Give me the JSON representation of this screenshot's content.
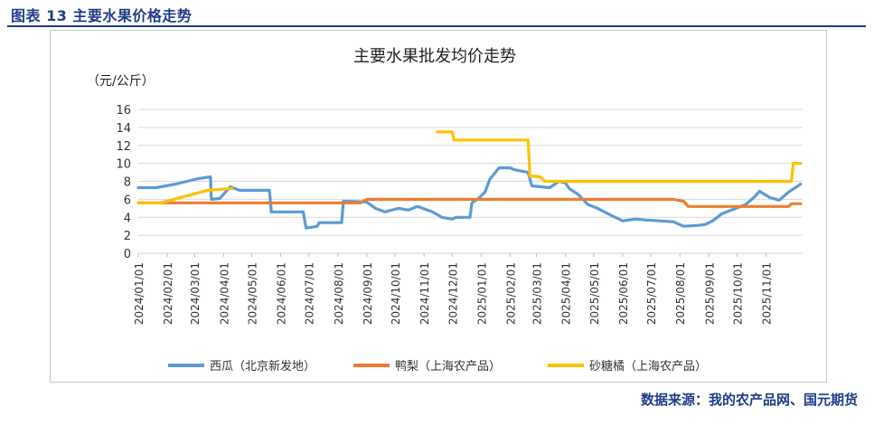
{
  "figure": {
    "title": "图表 13  主要水果价格走势",
    "source": "数据来源：我的农产品网、国元期货"
  },
  "chart_data": {
    "type": "line",
    "title": "主要水果批发均价走势",
    "ylabel": "（元/公斤）",
    "ylim": [
      0,
      16
    ],
    "yticks": [
      0,
      2,
      4,
      6,
      8,
      10,
      12,
      14,
      16
    ],
    "xlim": [
      "2024-01-01",
      "2025-12-10"
    ],
    "xticks": [
      "2024/01/01",
      "2024/02/01",
      "2024/03/01",
      "2024/04/01",
      "2024/05/01",
      "2024/06/01",
      "2024/07/01",
      "2024/08/01",
      "2024/09/01",
      "2024/10/01",
      "2024/11/01",
      "2024/12/01",
      "2025/01/01",
      "2025/02/01",
      "2025/03/01",
      "2025/04/01",
      "2025/05/01",
      "2025/06/01",
      "2025/07/01",
      "2025/08/01",
      "2025/09/01",
      "2025/10/01",
      "2025/11/01"
    ],
    "grid": "horizontal",
    "legend": "bottom",
    "series": [
      {
        "name": "西瓜（北京新发地）",
        "color": "#5b9bd5",
        "points": [
          [
            "2024-01-01",
            7.3
          ],
          [
            "2024-01-20",
            7.3
          ],
          [
            "2024-02-10",
            7.7
          ],
          [
            "2024-03-05",
            8.3
          ],
          [
            "2024-03-18",
            8.5
          ],
          [
            "2024-03-19",
            6.0
          ],
          [
            "2024-03-28",
            6.1
          ],
          [
            "2024-04-08",
            7.4
          ],
          [
            "2024-04-18",
            7.0
          ],
          [
            "2024-05-20",
            7.0
          ],
          [
            "2024-05-22",
            4.6
          ],
          [
            "2024-06-25",
            4.6
          ],
          [
            "2024-06-28",
            2.8
          ],
          [
            "2024-07-10",
            3.0
          ],
          [
            "2024-07-12",
            3.4
          ],
          [
            "2024-08-05",
            3.4
          ],
          [
            "2024-08-07",
            5.8
          ],
          [
            "2024-09-01",
            5.7
          ],
          [
            "2024-09-10",
            5.0
          ],
          [
            "2024-09-20",
            4.6
          ],
          [
            "2024-10-05",
            5.0
          ],
          [
            "2024-10-15",
            4.8
          ],
          [
            "2024-10-25",
            5.2
          ],
          [
            "2024-11-10",
            4.6
          ],
          [
            "2024-11-20",
            4.0
          ],
          [
            "2024-12-01",
            3.8
          ],
          [
            "2024-12-05",
            4.0
          ],
          [
            "2024-12-20",
            4.0
          ],
          [
            "2024-12-22",
            5.6
          ],
          [
            "2024-12-28",
            6.0
          ],
          [
            "2025-01-05",
            6.8
          ],
          [
            "2025-01-10",
            8.2
          ],
          [
            "2025-01-20",
            9.5
          ],
          [
            "2025-02-01",
            9.5
          ],
          [
            "2025-02-05",
            9.3
          ],
          [
            "2025-02-20",
            9.0
          ],
          [
            "2025-02-24",
            7.5
          ],
          [
            "2025-03-15",
            7.3
          ],
          [
            "2025-03-25",
            8.0
          ],
          [
            "2025-04-01",
            7.8
          ],
          [
            "2025-04-05",
            7.2
          ],
          [
            "2025-04-15",
            6.5
          ],
          [
            "2025-04-25",
            5.4
          ],
          [
            "2025-05-05",
            5.0
          ],
          [
            "2025-05-20",
            4.2
          ],
          [
            "2025-06-01",
            3.6
          ],
          [
            "2025-06-15",
            3.8
          ],
          [
            "2025-06-25",
            3.7
          ],
          [
            "2025-07-10",
            3.6
          ],
          [
            "2025-07-25",
            3.5
          ],
          [
            "2025-08-05",
            3.0
          ],
          [
            "2025-08-20",
            3.1
          ],
          [
            "2025-08-28",
            3.2
          ],
          [
            "2025-09-05",
            3.6
          ],
          [
            "2025-09-15",
            4.4
          ],
          [
            "2025-09-25",
            4.8
          ],
          [
            "2025-10-10",
            5.4
          ],
          [
            "2025-10-20",
            6.3
          ],
          [
            "2025-10-25",
            6.9
          ],
          [
            "2025-11-05",
            6.2
          ],
          [
            "2025-11-15",
            5.9
          ],
          [
            "2025-11-25",
            6.8
          ],
          [
            "2025-12-08",
            7.7
          ]
        ]
      },
      {
        "name": "鸭梨（上海农产品）",
        "color": "#ed7d31",
        "points": [
          [
            "2024-01-01",
            5.6
          ],
          [
            "2024-08-25",
            5.6
          ],
          [
            "2024-09-01",
            6.0
          ],
          [
            "2025-07-25",
            6.0
          ],
          [
            "2025-08-05",
            5.8
          ],
          [
            "2025-08-10",
            5.2
          ],
          [
            "2025-11-25",
            5.2
          ],
          [
            "2025-11-28",
            5.5
          ],
          [
            "2025-12-08",
            5.5
          ]
        ]
      },
      {
        "name": "砂糖橘（上海农产品）",
        "color": "#ffc000",
        "points": [
          [
            "2024-01-01",
            5.6
          ],
          [
            "2024-01-25",
            5.6
          ],
          [
            "2024-03-15",
            7.0
          ],
          [
            "2024-04-10",
            7.2
          ],
          null,
          [
            "2024-11-15",
            13.5
          ],
          [
            "2024-12-01",
            13.5
          ],
          [
            "2024-12-03",
            12.6
          ],
          [
            "2025-02-20",
            12.6
          ],
          [
            "2025-02-22",
            8.6
          ],
          [
            "2025-03-05",
            8.5
          ],
          [
            "2025-03-10",
            8.0
          ],
          [
            "2025-11-28",
            8.0
          ],
          [
            "2025-11-30",
            10.0
          ],
          [
            "2025-12-08",
            10.0
          ]
        ]
      }
    ]
  }
}
